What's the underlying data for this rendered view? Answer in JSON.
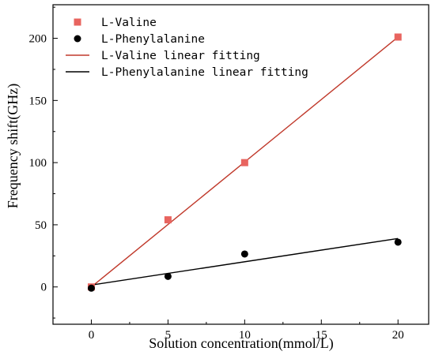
{
  "chart_data": {
    "type": "scatter",
    "xlabel": "Solution concentration(mmol/L)",
    "ylabel": "Frequency shift(GHz)",
    "xlim": [
      -2.5,
      22
    ],
    "ylim": [
      -30,
      227
    ],
    "x_ticks": [
      0,
      5,
      10,
      15,
      20
    ],
    "y_ticks": [
      0,
      50,
      100,
      150,
      200
    ],
    "grid": false,
    "legend_position": "top-left",
    "series": [
      {
        "name": "L-Valine",
        "kind": "scatter",
        "marker": "square",
        "color": "#e8645f",
        "x": [
          0,
          5,
          10,
          20
        ],
        "y": [
          0,
          54,
          100,
          201
        ]
      },
      {
        "name": "L-Phenylalanine",
        "kind": "scatter",
        "marker": "circle",
        "color": "#000000",
        "x": [
          0,
          5,
          10,
          20
        ],
        "y": [
          -1,
          8.5,
          26.5,
          36
        ]
      },
      {
        "name": "L-Valine linear fitting",
        "kind": "line",
        "color": "#c0392b",
        "x": [
          0,
          20
        ],
        "y": [
          0,
          201
        ]
      },
      {
        "name": "L-Phenylalanine linear fitting",
        "kind": "line",
        "color": "#000000",
        "x": [
          0,
          20
        ],
        "y": [
          1.5,
          39
        ]
      }
    ]
  }
}
